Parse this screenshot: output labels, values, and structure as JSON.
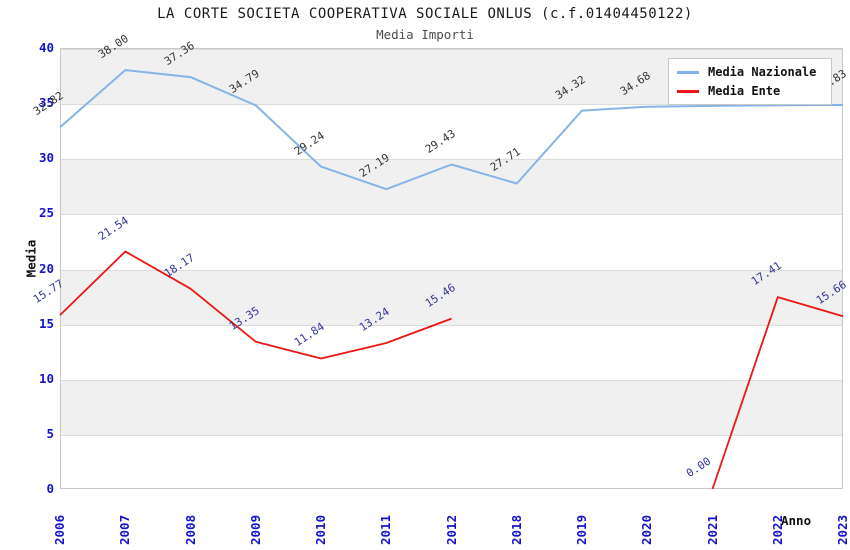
{
  "header": {
    "title": "LA CORTE SOCIETA COOPERATIVA SOCIALE ONLUS (c.f.01404450122)",
    "subtitle": "Media Importi"
  },
  "chart_data": {
    "type": "line",
    "title": "LA CORTE SOCIETA COOPERATIVA SOCIALE ONLUS (c.f.01404450122)",
    "subtitle": "Media Importi",
    "categories": [
      "2006",
      "2007",
      "2008",
      "2009",
      "2010",
      "2011",
      "2012",
      "2018",
      "2019",
      "2020",
      "2021",
      "2022",
      "2023"
    ],
    "xlabel": "Anno",
    "ylabel": "Media",
    "ylim": [
      0,
      40
    ],
    "ytick_step": 5,
    "yticks": [
      0,
      5,
      10,
      15,
      20,
      25,
      30,
      35,
      40
    ],
    "grid": "horizontal-bands-alternating",
    "legend_position": "top-right",
    "series": [
      {
        "name": "Media Nazionale",
        "color": "#85b4e4",
        "label_color": "#333333",
        "stroke_width": 2,
        "values": [
          32.82,
          38.0,
          37.36,
          34.79,
          29.24,
          27.19,
          29.43,
          27.71,
          34.32,
          34.68,
          34.75,
          34.8,
          34.83
        ],
        "point_labels": [
          "32.82",
          "38.00",
          "37.36",
          "34.79",
          "29.24",
          "27.19",
          "29.43",
          "27.71",
          "34.32",
          "34.68",
          "",
          "",
          "34.83"
        ]
      },
      {
        "name": "Media Ente",
        "color": "#ee1515",
        "label_color": "#333399",
        "stroke_width": 1.8,
        "values": [
          15.77,
          21.54,
          18.17,
          13.35,
          11.84,
          13.24,
          15.46,
          null,
          null,
          null,
          0.0,
          17.41,
          15.66
        ],
        "point_labels": [
          "15.77",
          "21.54",
          "18.17",
          "13.35",
          "11.84",
          "13.24",
          "15.46",
          "",
          "",
          "",
          "0.00",
          "17.41",
          "15.66"
        ]
      }
    ],
    "colors": {
      "axis_tick": "#1414cc",
      "band_gray": "#f0f0f0",
      "band_white": "#ffffff",
      "plot_border": "#c8c8c8",
      "gridline": "#dcdcdc",
      "title": "#1a1a1a",
      "subtitle": "#4d4d4d",
      "axis_title": "#111111"
    }
  }
}
